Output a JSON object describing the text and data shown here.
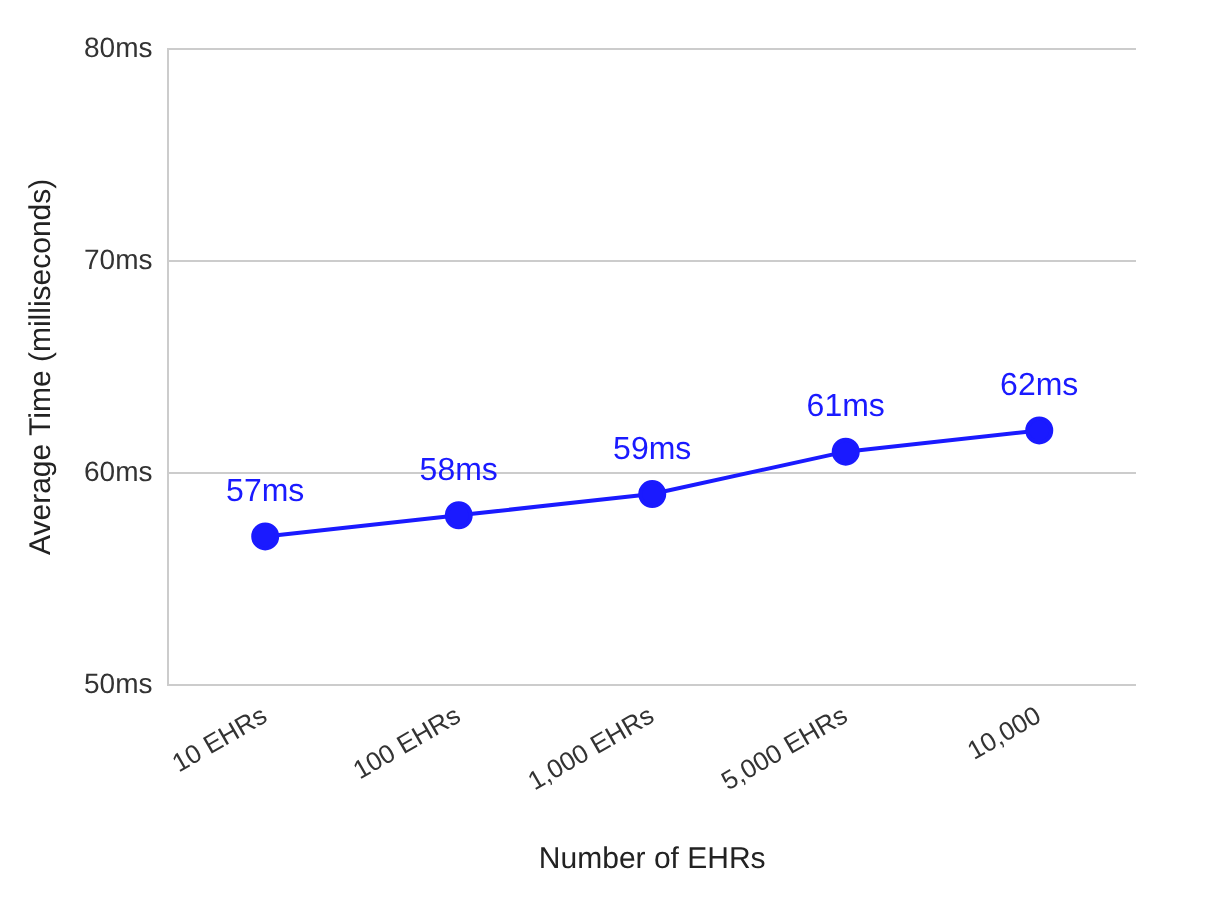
{
  "chart_data": {
    "type": "line",
    "xlabel": "Number of EHRs",
    "ylabel": "Average Time (milliseconds)",
    "categories": [
      "10 EHRs",
      "100 EHRs",
      "1,000 EHRs",
      "5,000 EHRs",
      "10,000"
    ],
    "series": [
      {
        "color": "#1a1aff",
        "values": [
          57,
          58,
          59,
          61,
          62
        ],
        "value_labels": [
          "57ms",
          "58ms",
          "59ms",
          "61ms",
          "62ms"
        ]
      }
    ],
    "ylim": [
      50,
      80
    ],
    "yticks": [
      {
        "value": 50,
        "label": "50ms"
      },
      {
        "value": 60,
        "label": "60ms"
      },
      {
        "value": 70,
        "label": "70ms"
      },
      {
        "value": 80,
        "label": "80ms"
      }
    ],
    "grid": "y",
    "marker": "circle",
    "line_style": "solid",
    "legend": false
  }
}
